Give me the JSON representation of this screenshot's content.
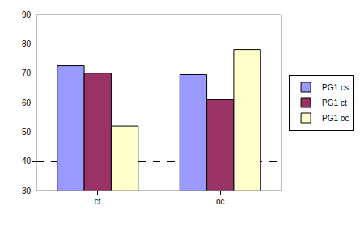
{
  "chart_data": {
    "type": "bar",
    "categories": [
      "ct",
      "oc"
    ],
    "series": [
      {
        "name": "PG1 cs",
        "color": "#9999ff",
        "values": [
          72.5,
          69.5
        ]
      },
      {
        "name": "PG1 ct",
        "color": "#993366",
        "values": [
          70,
          61
        ]
      },
      {
        "name": "PG1 oc",
        "color": "#ffffcc",
        "values": [
          52,
          78
        ]
      }
    ],
    "ylim": [
      30,
      90
    ],
    "yticks": [
      30,
      40,
      50,
      60,
      70,
      80,
      90
    ],
    "grid": true,
    "legend": "right"
  }
}
